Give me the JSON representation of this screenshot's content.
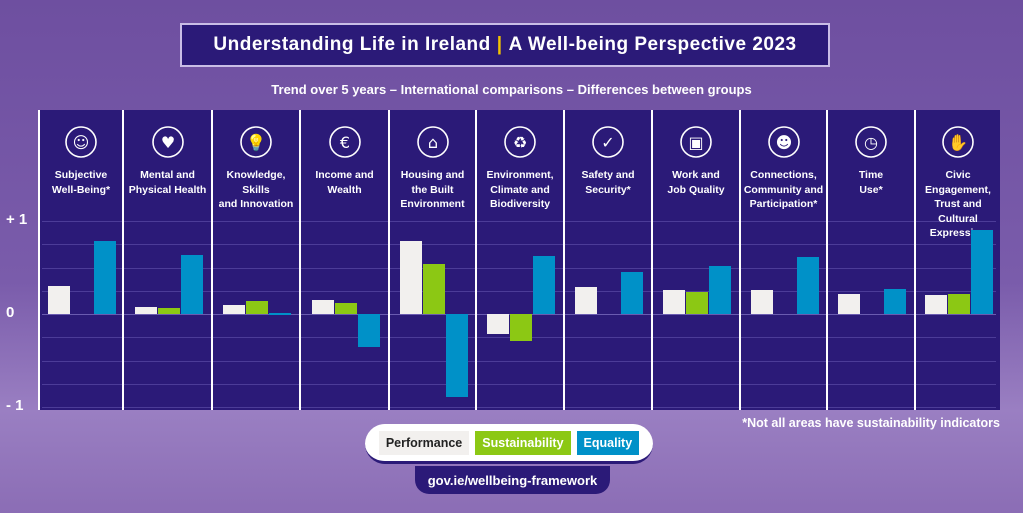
{
  "title": {
    "left": "Understanding Life in Ireland",
    "sep": "|",
    "right": "A Well-being Perspective 2023"
  },
  "subtitle": "Trend over 5 years – International comparisons – Differences between groups",
  "note": "*Not all areas have sustainability indicators",
  "link": "gov.ie/wellbeing-framework",
  "colors": {
    "panel": "#2b1a78",
    "performance": "#f2f0ee",
    "sustainability": "#8cc814",
    "equality": "#0091c8"
  },
  "chart_data": {
    "type": "bar",
    "ylim": [
      -1,
      1
    ],
    "yticks": [
      {
        "v": 1,
        "label": "+ 1"
      },
      {
        "v": 0,
        "label": "0"
      },
      {
        "v": -1,
        "label": "- 1"
      }
    ],
    "grid": true,
    "legend": "bottom-center",
    "categories": [
      {
        "label": [
          "Subjective",
          "Well-Being*"
        ],
        "icon": "head-icon",
        "glyph": "☺"
      },
      {
        "label": [
          "Mental and",
          "Physical Health"
        ],
        "icon": "heart-hands-icon",
        "glyph": "♥"
      },
      {
        "label": [
          "Knowledge,",
          "Skills",
          "and Innovation"
        ],
        "icon": "lightbulb-icon",
        "glyph": "💡"
      },
      {
        "label": [
          "Income and",
          "Wealth"
        ],
        "icon": "euro-icon",
        "glyph": "€"
      },
      {
        "label": [
          "Housing and",
          "the Built",
          "Environment"
        ],
        "icon": "house-key-icon",
        "glyph": "⌂"
      },
      {
        "label": [
          "Environment,",
          "Climate and",
          "Biodiversity"
        ],
        "icon": "leaf-cycle-icon",
        "glyph": "♻"
      },
      {
        "label": [
          "Safety and",
          "Security*"
        ],
        "icon": "shield-check-icon",
        "glyph": "✓"
      },
      {
        "label": [
          "Work and",
          "Job Quality"
        ],
        "icon": "briefcase-icon",
        "glyph": "▣"
      },
      {
        "label": [
          "Connections,",
          "Community and",
          "Participation*"
        ],
        "icon": "people-chat-icon",
        "glyph": "☻"
      },
      {
        "label": [
          "Time",
          "Use*"
        ],
        "icon": "clock-icon",
        "glyph": "◷"
      },
      {
        "label": [
          "Civic",
          "Engagement,",
          "Trust and Cultural",
          "Expression"
        ],
        "icon": "handshake-icon",
        "glyph": "✋"
      }
    ],
    "series": [
      {
        "name": "Performance",
        "values": [
          0.3,
          0.07,
          0.1,
          0.15,
          0.78,
          -0.22,
          0.29,
          0.26,
          0.26,
          0.22,
          0.2
        ]
      },
      {
        "name": "Sustainability",
        "values": [
          null,
          0.06,
          0.14,
          0.12,
          0.54,
          -0.29,
          null,
          0.24,
          null,
          null,
          0.22
        ]
      },
      {
        "name": "Equality",
        "values": [
          0.79,
          0.63,
          0.01,
          -0.35,
          -0.89,
          0.62,
          0.45,
          0.52,
          0.61,
          0.27,
          0.9
        ]
      }
    ]
  }
}
